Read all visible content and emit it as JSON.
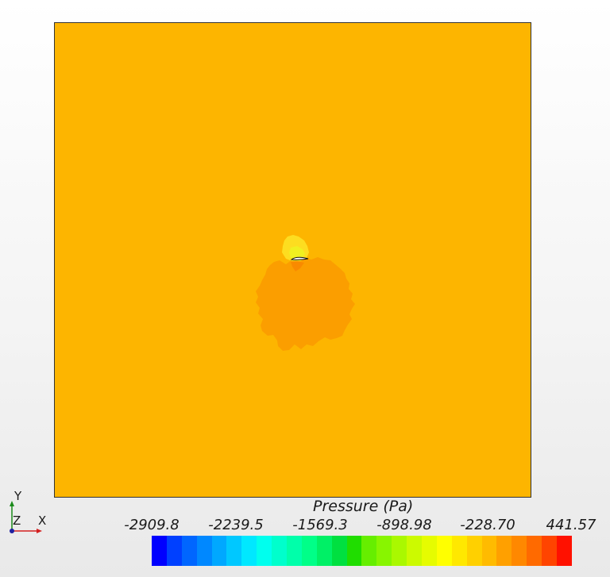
{
  "legend": {
    "title": "Pressure (Pa)",
    "tick_labels": [
      "-2909.8",
      "-2239.5",
      "-1569.3",
      "-898.98",
      "-228.70",
      "441.57"
    ],
    "colors": [
      "#0000ff",
      "#0040ff",
      "#0066ff",
      "#0088ff",
      "#00a8ff",
      "#00c8ff",
      "#00e8ff",
      "#00ffee",
      "#00ffcc",
      "#00ffaa",
      "#00ff88",
      "#00f066",
      "#00e040",
      "#20dd00",
      "#66ee00",
      "#88f500",
      "#aaf800",
      "#ccfa00",
      "#e6fc00",
      "#ffff00",
      "#ffe800",
      "#ffd000",
      "#ffbb00",
      "#ffa000",
      "#ff8800",
      "#ff6a00",
      "#ff4400",
      "#ff1100"
    ]
  },
  "field": {
    "background_color": "#fdb500",
    "wake_color": "#fb9e00",
    "suction_color": "#fddd20",
    "stagnation_color": "#f98a00"
  },
  "triad": {
    "y_label": "Y",
    "z_label": "Z",
    "x_label": "X",
    "y_color": "#1a8a1a",
    "x_color": "#d42020",
    "z_color": "#2020a0"
  }
}
